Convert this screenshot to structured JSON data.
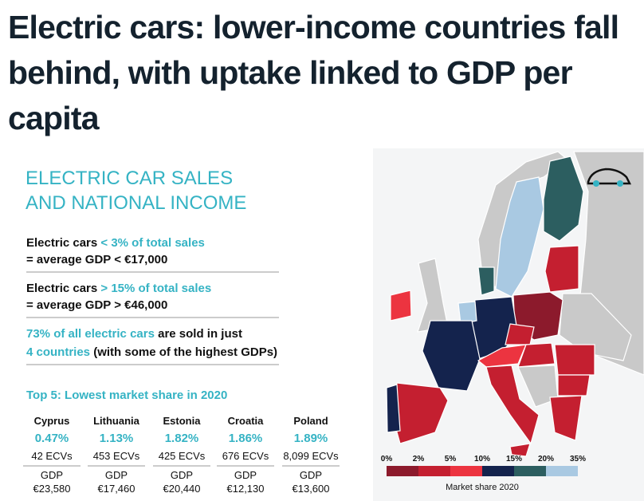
{
  "header": {
    "title": "Electric cars: lower-income countries fall behind, with uptake linked to GDP per capita"
  },
  "infographic": {
    "heading": [
      "ELECTRIC CAR SALES",
      "AND NATIONAL INCOME"
    ],
    "facts": [
      {
        "text": "Electric cars",
        "highlight": "< 3% of total sales",
        "line2": "= average GDP < €17,000"
      },
      {
        "text": "Electric cars",
        "highlight": "> 15% of total sales",
        "line2": "= average GDP > €46,000"
      },
      {
        "highlight": "73% of all electric cars",
        "text": "are sold in just",
        "highlight2": "4 countries",
        "text2": "(with some of the highest GDPs)"
      }
    ],
    "table_title": "Top 5: Lowest market share in 2020",
    "countries": [
      {
        "name": "Cyprus",
        "share": "0.47%",
        "ecvs": "42 ECVs",
        "gdp_label": "GDP",
        "gdp": "€23,580"
      },
      {
        "name": "Lithuania",
        "share": "1.13%",
        "ecvs": "453 ECVs",
        "gdp_label": "GDP",
        "gdp": "€17,460"
      },
      {
        "name": "Estonia",
        "share": "1.82%",
        "ecvs": "425 ECVs",
        "gdp_label": "GDP",
        "gdp": "€20,440"
      },
      {
        "name": "Croatia",
        "share": "1.86%",
        "ecvs": "676 ECVs",
        "gdp_label": "GDP",
        "gdp": "€12,130"
      },
      {
        "name": "Poland",
        "share": "1.89%",
        "ecvs": "8,099 ECVs",
        "gdp_label": "GDP",
        "gdp": "€13,600"
      }
    ],
    "legend": {
      "labels": [
        "0%",
        "2%",
        "5%",
        "10%",
        "15%",
        "20%",
        "35%"
      ],
      "colors": [
        "#8c1a2c",
        "#c41f30",
        "#ec3440",
        "#14234d",
        "#2c5e60",
        "#a9c9e2"
      ],
      "caption": "Market share 2020"
    }
  }
}
